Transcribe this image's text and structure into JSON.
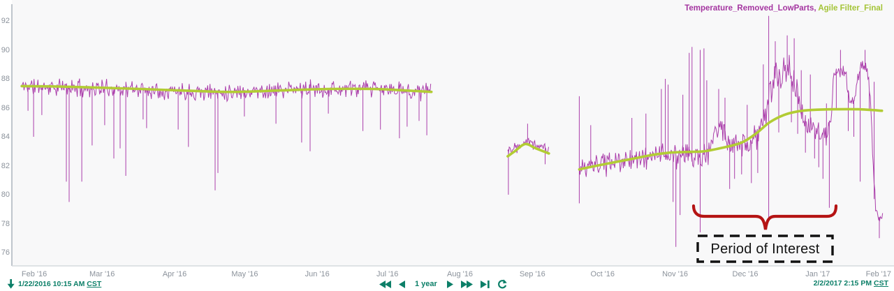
{
  "legend": {
    "series1": "Temperature_Removed_LowParts",
    "separator": ", ",
    "series2": "Agile Filter_Final"
  },
  "colors": {
    "purple": "#a22aa2",
    "green": "#b2cc34",
    "legend_purple": "#a435a0",
    "legend_green": "#a4c437",
    "teal": "#0c7f68",
    "axis_text": "#8b929b",
    "axis_line": "#bfc5cc",
    "baseline_line": "#d6dade",
    "plot_bg": "#f8f8f9",
    "annotation_red": "#b51414",
    "annotation_black": "#121212"
  },
  "annotation": {
    "label": "Period of Interest"
  },
  "y_axis": {
    "ticks": [
      92,
      90,
      88,
      86,
      84,
      82,
      80,
      78,
      76
    ]
  },
  "x_axis": {
    "months": [
      {
        "label": "Feb '16",
        "year": 2016,
        "month": 2
      },
      {
        "label": "Mar '16",
        "year": 2016,
        "month": 3
      },
      {
        "label": "Apr '16",
        "year": 2016,
        "month": 4
      },
      {
        "label": "May '16",
        "year": 2016,
        "month": 5
      },
      {
        "label": "Jun '16",
        "year": 2016,
        "month": 6
      },
      {
        "label": "Jul '16",
        "year": 2016,
        "month": 7
      },
      {
        "label": "Aug '16",
        "year": 2016,
        "month": 8
      },
      {
        "label": "Sep '16",
        "year": 2016,
        "month": 9
      },
      {
        "label": "Oct '16",
        "year": 2016,
        "month": 10
      },
      {
        "label": "Nov '16",
        "year": 2016,
        "month": 11
      },
      {
        "label": "Dec '16",
        "year": 2016,
        "month": 12
      },
      {
        "label": "Jan '17",
        "year": 2017,
        "month": 1
      },
      {
        "label": "Feb '17",
        "year": 2017,
        "month": 2
      }
    ]
  },
  "footer": {
    "start_time": "1/22/2016 10:15 AM",
    "start_tz": "CST",
    "end_time": "2/2/2017 2:15 PM",
    "end_tz": "CST",
    "duration_label": "1 year"
  },
  "chart_data": {
    "type": "line",
    "title": "",
    "xlabel": "",
    "ylabel": "",
    "ylim": [
      75.1,
      93.4
    ],
    "grid": false,
    "legend_position": "top-right",
    "start": {
      "year": 2016,
      "month": 1,
      "day": 22,
      "hour": 10,
      "minute": 15
    },
    "end": {
      "year": 2017,
      "month": 2,
      "day": 2,
      "hour": 14,
      "minute": 15
    },
    "series": [
      {
        "name": "Temperature_Removed_LowParts",
        "color_key": "purple",
        "style": "noisy",
        "segments": [
          {
            "seed": 11,
            "day_start": 4.2,
            "day_end": 179.4,
            "baseline": [
              [
                4.2,
                87.5
              ],
              [
                20,
                87.4
              ],
              [
                50,
                87.3
              ],
              [
                85,
                87.1
              ],
              [
                105,
                87.15
              ],
              [
                130,
                87.3
              ],
              [
                155,
                87.3
              ],
              [
                170,
                87.2
              ],
              [
                179.4,
                87.1
              ]
            ],
            "noise": [
              [
                4.2,
                0.72
              ],
              [
                179.4,
                0.72
              ]
            ],
            "spikes": [
              [
                6.9,
                85.8
              ],
              [
                9.3,
                84.0
              ],
              [
                12.8,
                85.5
              ],
              [
                23.3,
                80.9
              ],
              [
                24.5,
                79.5
              ],
              [
                29.9,
                80.9
              ],
              [
                34.3,
                83.4
              ],
              [
                39.7,
                84.8
              ],
              [
                43.6,
                82.5
              ],
              [
                46.3,
                83.2
              ],
              [
                48.7,
                81.3
              ],
              [
                56.1,
                85.2
              ],
              [
                57.6,
                84.6
              ],
              [
                71.1,
                84.5
              ],
              [
                75.5,
                83.3
              ],
              [
                86.9,
                80.3
              ],
              [
                88.1,
                81.5
              ],
              [
                99.4,
                85.4
              ],
              [
                112.9,
                84.9
              ],
              [
                123.9,
                83.6
              ],
              [
                127.5,
                83.0
              ],
              [
                135.3,
                85.6
              ],
              [
                150.1,
                84.4
              ],
              [
                157.6,
                84.5
              ],
              [
                165.7,
                83.9
              ],
              [
                169.0,
                84.7
              ],
              [
                174.1,
                85.1
              ],
              [
                177.4,
                84.1
              ]
            ],
            "verticals": []
          },
          {
            "seed": 22,
            "day_start": 212.0,
            "day_end": 229.6,
            "baseline": [
              [
                212,
                83.1
              ],
              [
                216,
                83.4
              ],
              [
                219.5,
                83.8
              ],
              [
                224,
                83.5
              ],
              [
                229.6,
                83.1
              ]
            ],
            "noise": [
              [
                212,
                0.55
              ],
              [
                229.6,
                0.55
              ]
            ],
            "spikes": [
              [
                212.3,
                80.0
              ],
              [
                220.5,
                84.9
              ],
              [
                228,
                82.1
              ]
            ],
            "verticals": []
          },
          {
            "seed": 33,
            "day_start": 242.6,
            "day_end": 372.4,
            "baseline": [
              [
                242.6,
                81.7
              ],
              [
                250,
                82.0
              ],
              [
                258,
                82.2
              ],
              [
                266,
                82.5
              ],
              [
                272,
                82.6
              ],
              [
                278,
                82.9
              ],
              [
                283,
                82.6
              ],
              [
                288,
                82.7
              ],
              [
                293,
                82.5
              ],
              [
                298,
                83.0
              ],
              [
                301,
                84.5
              ],
              [
                303.5,
                84.7
              ],
              [
                305.5,
                83.4
              ],
              [
                311,
                83.3
              ],
              [
                317,
                83.6
              ],
              [
                320,
                84.6
              ],
              [
                322,
                85.5
              ],
              [
                324,
                86.8
              ],
              [
                326,
                88.0
              ],
              [
                329,
                88.2
              ],
              [
                332,
                88.6
              ],
              [
                334,
                88.0
              ],
              [
                336,
                87.2
              ],
              [
                337.8,
                85.2
              ],
              [
                341,
                84.9
              ],
              [
                345,
                84.4
              ],
              [
                348.5,
                83.9
              ],
              [
                350.5,
                85.5
              ],
              [
                351.5,
                88.2
              ],
              [
                354,
                88.8
              ],
              [
                356.5,
                88.3
              ],
              [
                358.5,
                86.3
              ],
              [
                360.5,
                86.6
              ],
              [
                361.8,
                88.4
              ],
              [
                364,
                88.8
              ],
              [
                366,
                88.4
              ],
              [
                367.2,
                86.0
              ],
              [
                368.3,
                81.8
              ],
              [
                369.3,
                79.2
              ],
              [
                370.3,
                78.4
              ],
              [
                372.4,
                78.6
              ]
            ],
            "noise": [
              [
                242.6,
                0.9
              ],
              [
                280,
                1.0
              ],
              [
                293,
                1.15
              ],
              [
                299,
                1.0
              ],
              [
                310,
                1.0
              ],
              [
                320,
                1.15
              ],
              [
                326,
                1.3
              ],
              [
                336,
                1.25
              ],
              [
                340,
                0.95
              ],
              [
                349,
                0.8
              ],
              [
                351,
                0.75
              ],
              [
                366,
                0.8
              ],
              [
                367.5,
                0.9
              ],
              [
                368.5,
                0.7
              ],
              [
                372.4,
                0.5
              ]
            ],
            "spikes": [
              [
                247.5,
                84.8
              ],
              [
                265.1,
                85.3
              ],
              [
                271.1,
                85.6
              ],
              [
                277.7,
                87.3
              ],
              [
                279.4,
                88.0
              ],
              [
                280.6,
                87.6
              ],
              [
                282.7,
                79.5
              ],
              [
                283.9,
                76.4
              ],
              [
                285.7,
                78.6
              ],
              [
                286.9,
                86.9
              ],
              [
                289.6,
                89.8
              ],
              [
                290.8,
                90.2
              ],
              [
                295.9,
                90.1
              ],
              [
                297.1,
                87.9
              ],
              [
                302.2,
                87.3
              ],
              [
                304.9,
                86.7
              ],
              [
                306.9,
                80.4
              ],
              [
                309.0,
                81.1
              ],
              [
                312.0,
                81.4
              ],
              [
                314.4,
                86.2
              ],
              [
                316.2,
                80.8
              ],
              [
                318.9,
                81.5
              ],
              [
                321.3,
                89.0
              ],
              [
                326.4,
                90.6
              ],
              [
                327.9,
                84.3
              ],
              [
                331.5,
                91.0
              ],
              [
                333.3,
                85.0
              ],
              [
                334.5,
                90.8
              ],
              [
                336.0,
                84.2
              ],
              [
                337.5,
                88.6
              ],
              [
                339.3,
                82.9
              ],
              [
                341.4,
                88.3
              ],
              [
                343.2,
                82.5
              ],
              [
                345.0,
                81.9
              ],
              [
                346.8,
                81.1
              ],
              [
                348.3,
                86.3
              ],
              [
                349.5,
                79.1
              ],
              [
                352.5,
                85.9
              ],
              [
                354.3,
                90.0
              ],
              [
                357.6,
                84.4
              ],
              [
                360.0,
                84.0
              ],
              [
                362.7,
                80.9
              ],
              [
                364.8,
                90.0
              ],
              [
                366.6,
                85.9
              ],
              [
                370.9,
                77.0
              ]
            ],
            "verticals": [
              [
                242.6,
                79.4,
                86.8
              ],
              [
                294.3,
                77.4,
                90.0
              ],
              [
                323.6,
                78.4,
                92.35
              ],
              [
                368.7,
                79.7,
                87.8
              ]
            ]
          }
        ]
      },
      {
        "name": "Agile Filter_Final",
        "color_key": "green",
        "style": "smooth",
        "segments": [
          {
            "points": [
              [
                4.2,
                87.5
              ],
              [
                25,
                87.45
              ],
              [
                55,
                87.3
              ],
              [
                80,
                87.15
              ],
              [
                95,
                87.1
              ],
              [
                115,
                87.2
              ],
              [
                135,
                87.3
              ],
              [
                155,
                87.3
              ],
              [
                168,
                87.2
              ],
              [
                179.4,
                87.1
              ]
            ]
          },
          {
            "points": [
              [
                212,
                82.65
              ],
              [
                215,
                83.0
              ],
              [
                219.5,
                83.5
              ],
              [
                224,
                83.2
              ],
              [
                229.6,
                82.85
              ]
            ]
          },
          {
            "points": [
              [
                242.6,
                81.75
              ],
              [
                250,
                82.0
              ],
              [
                258,
                82.25
              ],
              [
                266,
                82.5
              ],
              [
                274,
                82.75
              ],
              [
                281,
                82.9
              ],
              [
                288,
                82.95
              ],
              [
                296,
                83.0
              ],
              [
                304,
                83.25
              ],
              [
                312,
                83.6
              ],
              [
                318,
                84.2
              ],
              [
                324,
                85.0
              ],
              [
                330,
                85.5
              ],
              [
                336,
                85.75
              ],
              [
                342,
                85.85
              ],
              [
                352,
                85.9
              ],
              [
                362,
                85.9
              ],
              [
                372,
                85.8
              ]
            ]
          }
        ]
      }
    ]
  }
}
